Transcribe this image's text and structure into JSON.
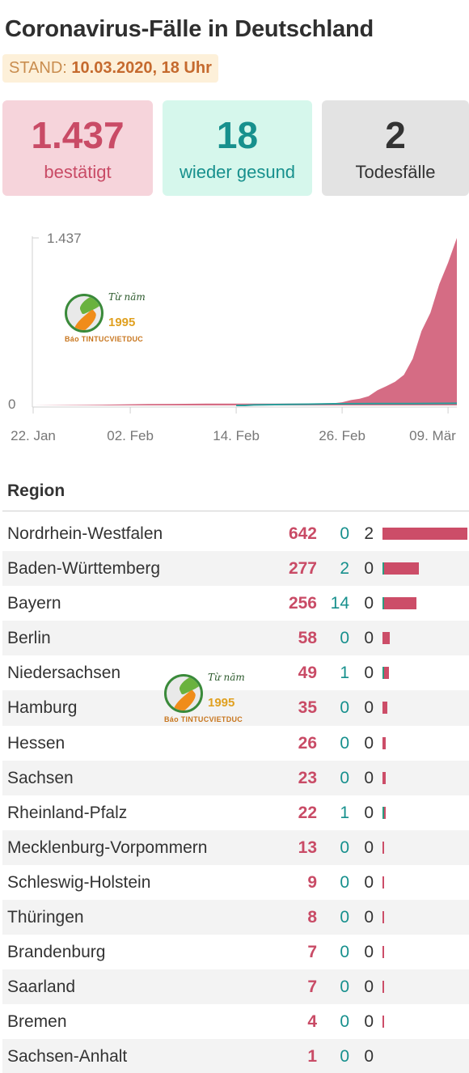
{
  "header": {
    "title": "Coronavirus-Fälle in Deutschland",
    "stand_label": "STAND:",
    "stand_value": "10.03.2020, 18 Uhr"
  },
  "summary": {
    "confirmed": {
      "value": "1.437",
      "label": "bestätigt"
    },
    "recovered": {
      "value": "18",
      "label": "wieder gesund"
    },
    "deaths": {
      "value": "2",
      "label": "Todesfälle"
    }
  },
  "chart_data": {
    "type": "area",
    "title": "",
    "xlabel": "",
    "ylabel": "",
    "ylim": [
      0,
      1437
    ],
    "y_ticks": [
      "0",
      "1.437"
    ],
    "x_start": "2020-01-22",
    "x_end": "2020-03-10",
    "x_ticks": [
      {
        "date": "2020-01-22",
        "label": "22. Jan"
      },
      {
        "date": "2020-02-02",
        "label": "02. Feb"
      },
      {
        "date": "2020-02-14",
        "label": "14. Feb"
      },
      {
        "date": "2020-02-26",
        "label": "26. Feb"
      },
      {
        "date": "2020-03-09",
        "label": "09. Mär"
      }
    ],
    "series": [
      {
        "color": "#d56c84",
        "points": [
          [
            "2020-01-22",
            0
          ],
          [
            "2020-01-28",
            4
          ],
          [
            "2020-02-01",
            8
          ],
          [
            "2020-02-04",
            12
          ],
          [
            "2020-02-07",
            13
          ],
          [
            "2020-02-11",
            16
          ],
          [
            "2020-02-14",
            16
          ],
          [
            "2020-02-18",
            16
          ],
          [
            "2020-02-21",
            16
          ],
          [
            "2020-02-25",
            18
          ],
          [
            "2020-02-26",
            27
          ],
          [
            "2020-02-27",
            46
          ],
          [
            "2020-02-28",
            57
          ],
          [
            "2020-02-29",
            79
          ],
          [
            "2020-03-01",
            130
          ],
          [
            "2020-03-02",
            165
          ],
          [
            "2020-03-03",
            203
          ],
          [
            "2020-03-04",
            262
          ],
          [
            "2020-03-05",
            400
          ],
          [
            "2020-03-06",
            639
          ],
          [
            "2020-03-07",
            795
          ],
          [
            "2020-03-08",
            1040
          ],
          [
            "2020-03-09",
            1224
          ],
          [
            "2020-03-10",
            1437
          ]
        ]
      },
      {
        "color": "#2a9d9a",
        "points": [
          [
            "2020-02-14",
            0
          ],
          [
            "2020-02-15",
            0
          ],
          [
            "2020-02-16",
            4
          ],
          [
            "2020-02-20",
            8
          ],
          [
            "2020-02-25",
            14
          ],
          [
            "2020-03-01",
            16
          ],
          [
            "2020-03-05",
            16
          ],
          [
            "2020-03-10",
            18
          ]
        ]
      }
    ]
  },
  "watermark": {
    "text_top": "Từ năm",
    "year": "1995",
    "brand": "Báo TINTUCVIETDUC"
  },
  "regions": {
    "header": "Region",
    "rows": [
      {
        "name": "Nordrhein-Westfalen",
        "confirmed": 642,
        "recovered": 0,
        "deaths": 2
      },
      {
        "name": "Baden-Württemberg",
        "confirmed": 277,
        "recovered": 2,
        "deaths": 0
      },
      {
        "name": "Bayern",
        "confirmed": 256,
        "recovered": 14,
        "deaths": 0
      },
      {
        "name": "Berlin",
        "confirmed": 58,
        "recovered": 0,
        "deaths": 0
      },
      {
        "name": "Niedersachsen",
        "confirmed": 49,
        "recovered": 1,
        "deaths": 0
      },
      {
        "name": "Hamburg",
        "confirmed": 35,
        "recovered": 0,
        "deaths": 0
      },
      {
        "name": "Hessen",
        "confirmed": 26,
        "recovered": 0,
        "deaths": 0
      },
      {
        "name": "Sachsen",
        "confirmed": 23,
        "recovered": 0,
        "deaths": 0
      },
      {
        "name": "Rheinland-Pfalz",
        "confirmed": 22,
        "recovered": 1,
        "deaths": 0
      },
      {
        "name": "Mecklenburg-Vorpommern",
        "confirmed": 13,
        "recovered": 0,
        "deaths": 0
      },
      {
        "name": "Schleswig-Holstein",
        "confirmed": 9,
        "recovered": 0,
        "deaths": 0
      },
      {
        "name": "Thüringen",
        "confirmed": 8,
        "recovered": 0,
        "deaths": 0
      },
      {
        "name": "Brandenburg",
        "confirmed": 7,
        "recovered": 0,
        "deaths": 0
      },
      {
        "name": "Saarland",
        "confirmed": 7,
        "recovered": 0,
        "deaths": 0
      },
      {
        "name": "Bremen",
        "confirmed": 4,
        "recovered": 0,
        "deaths": 0
      },
      {
        "name": "Sachsen-Anhalt",
        "confirmed": 1,
        "recovered": 0,
        "deaths": 0
      }
    ]
  }
}
